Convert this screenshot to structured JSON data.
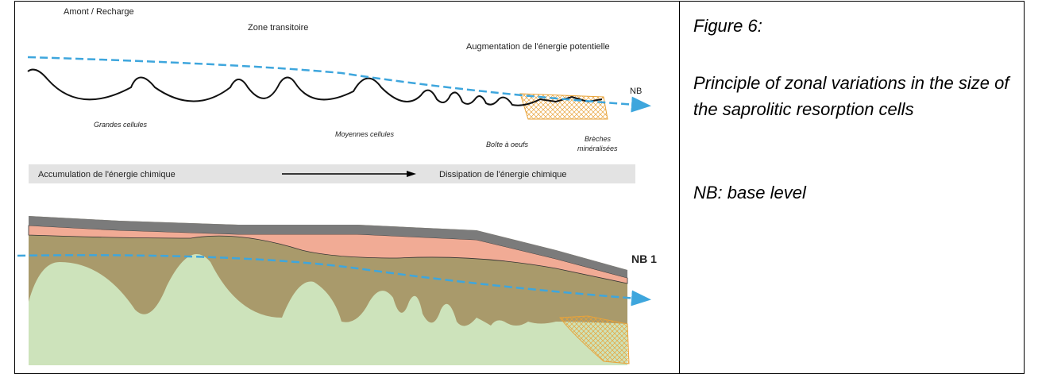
{
  "diagram": {
    "labels": {
      "upstream": "Amont / Recharge",
      "transition": "Zone transitoire",
      "potential": "Augmentation de l'énergie potentielle",
      "nb": "NB",
      "large": "Grandes cellules",
      "medium": "Moyennes cellules",
      "egg": "Boîte à oeufs",
      "breccia_1": "Brèches",
      "breccia_2": "minéralisées",
      "accumulation": "Accumulation de l'énergie chimique",
      "dissipation": "Dissipation de l'énergie chimique",
      "nb1": "NB 1"
    }
  },
  "caption": {
    "figure": "Figure 6:",
    "title": "Principle of zonal variations in the size of the saprolitic resorption cells",
    "note": "NB: base level"
  }
}
